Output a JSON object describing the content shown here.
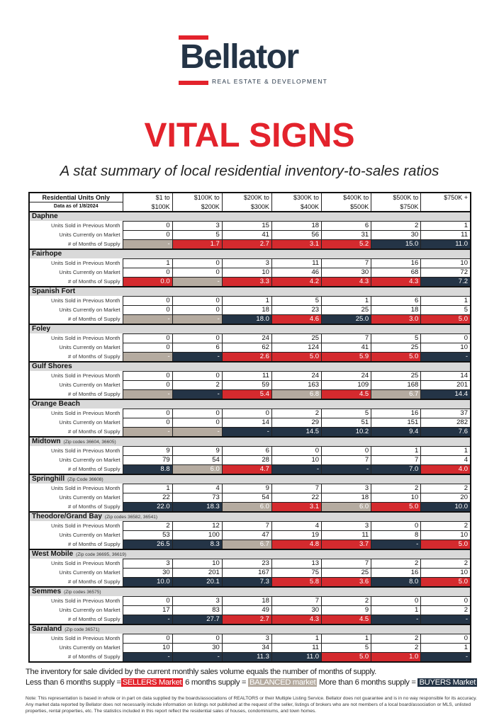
{
  "brand": {
    "name": "Bellator",
    "tagline": "REAL ESTATE & DEVELOPMENT"
  },
  "title": "VITAL SIGNS",
  "subtitle": "A stat summary of local residential inventory-to-sales ratios",
  "colors": {
    "sellers": "#d42a2e",
    "balanced": "#b5aba0",
    "buyers": "#243446",
    "brand_red": "#e3232c"
  },
  "table": {
    "header_label": "Residential Units Only",
    "date_label": "Data as of 1/8/2024",
    "columns": [
      [
        "$1 to",
        "$100K"
      ],
      [
        "$100K to",
        "$200K"
      ],
      [
        "$200K to",
        "$300K"
      ],
      [
        "$300K to",
        "$400K"
      ],
      [
        "$400K to",
        "$500K"
      ],
      [
        "$500K to",
        "$750K"
      ],
      [
        "$750K +",
        ""
      ]
    ],
    "row_labels": [
      "Units Sold in Previous Month",
      "Units Currently on Market",
      "# of Months of Supply"
    ],
    "market_key": {
      "s": "sellers",
      "b": "balanced",
      "y": "buyers"
    },
    "sections": [
      {
        "name": "Daphne",
        "zip": "",
        "sold": [
          "0",
          "3",
          "15",
          "18",
          "6",
          "2",
          "1"
        ],
        "market": [
          "0",
          "5",
          "41",
          "56",
          "31",
          "30",
          "11"
        ],
        "supply": [
          "-",
          "1.7",
          "2.7",
          "3.1",
          "5.2",
          "15.0",
          "11.0"
        ],
        "supply_market": [
          "b",
          "s",
          "s",
          "s",
          "s",
          "y",
          "y"
        ]
      },
      {
        "name": "Fairhope",
        "zip": "",
        "sold": [
          "1",
          "0",
          "3",
          "11",
          "7",
          "16",
          "10"
        ],
        "market": [
          "0",
          "0",
          "10",
          "46",
          "30",
          "68",
          "72"
        ],
        "supply": [
          "0.0",
          "-",
          "3.3",
          "4.2",
          "4.3",
          "4.3",
          "7.2"
        ],
        "supply_market": [
          "s",
          "b",
          "s",
          "s",
          "s",
          "s",
          "y"
        ]
      },
      {
        "name": "Spanish Fort",
        "zip": "",
        "sold": [
          "0",
          "0",
          "1",
          "5",
          "1",
          "6",
          "1"
        ],
        "market": [
          "0",
          "0",
          "18",
          "23",
          "25",
          "18",
          "5"
        ],
        "supply": [
          "-",
          "-",
          "18.0",
          "4.6",
          "25.0",
          "3.0",
          "5.0"
        ],
        "supply_market": [
          "b",
          "b",
          "y",
          "s",
          "y",
          "s",
          "s"
        ]
      },
      {
        "name": "Foley",
        "zip": "",
        "sold": [
          "0",
          "0",
          "24",
          "25",
          "7",
          "5",
          "0"
        ],
        "market": [
          "0",
          "6",
          "62",
          "124",
          "41",
          "25",
          "10"
        ],
        "supply": [
          "-",
          "-",
          "2.6",
          "5.0",
          "5.9",
          "5.0",
          "-"
        ],
        "supply_market": [
          "b",
          "y",
          "s",
          "s",
          "s",
          "s",
          "y"
        ]
      },
      {
        "name": "Gulf Shores",
        "zip": "",
        "sold": [
          "0",
          "0",
          "11",
          "24",
          "24",
          "25",
          "14"
        ],
        "market": [
          "0",
          "2",
          "59",
          "163",
          "109",
          "168",
          "201"
        ],
        "supply": [
          "-",
          "-",
          "5.4",
          "6.8",
          "4.5",
          "6.7",
          "14.4"
        ],
        "supply_market": [
          "b",
          "y",
          "s",
          "b",
          "s",
          "b",
          "y"
        ]
      },
      {
        "name": "Orange Beach",
        "zip": "",
        "sold": [
          "0",
          "0",
          "0",
          "2",
          "5",
          "16",
          "37"
        ],
        "market": [
          "0",
          "0",
          "14",
          "29",
          "51",
          "151",
          "282"
        ],
        "supply": [
          "-",
          "-",
          "-",
          "14.5",
          "10.2",
          "9.4",
          "7.6"
        ],
        "supply_market": [
          "b",
          "b",
          "y",
          "y",
          "y",
          "y",
          "y"
        ]
      },
      {
        "name": "Midtown",
        "zip": "(Zip codes 36604, 36605)",
        "sold": [
          "9",
          "9",
          "6",
          "0",
          "0",
          "1",
          "1"
        ],
        "market": [
          "79",
          "54",
          "28",
          "10",
          "7",
          "7",
          "4"
        ],
        "supply": [
          "8.8",
          "6.0",
          "4.7",
          "-",
          "-",
          "7.0",
          "4.0"
        ],
        "supply_market": [
          "y",
          "b",
          "s",
          "y",
          "y",
          "y",
          "s"
        ]
      },
      {
        "name": "Springhill",
        "zip": "(Zip Code 36608)",
        "sold": [
          "1",
          "4",
          "9",
          "7",
          "3",
          "2",
          "2"
        ],
        "market": [
          "22",
          "73",
          "54",
          "22",
          "18",
          "10",
          "20"
        ],
        "supply": [
          "22.0",
          "18.3",
          "6.0",
          "3.1",
          "6.0",
          "5.0",
          "10.0"
        ],
        "supply_market": [
          "y",
          "y",
          "b",
          "s",
          "b",
          "s",
          "y"
        ]
      },
      {
        "name": "Theodore/Grand Bay",
        "zip": "(Zip codes 36582, 36541)",
        "sold": [
          "2",
          "12",
          "7",
          "4",
          "3",
          "0",
          "2"
        ],
        "market": [
          "53",
          "100",
          "47",
          "19",
          "11",
          "8",
          "10"
        ],
        "supply": [
          "26.5",
          "8.3",
          "6.7",
          "4.8",
          "3.7",
          "-",
          "5.0"
        ],
        "supply_market": [
          "y",
          "y",
          "b",
          "s",
          "s",
          "y",
          "s"
        ]
      },
      {
        "name": "West Mobile",
        "zip": "(Zip code 36695, 36619)",
        "sold": [
          "3",
          "10",
          "23",
          "13",
          "7",
          "2",
          "2"
        ],
        "market": [
          "30",
          "201",
          "167",
          "75",
          "25",
          "16",
          "10"
        ],
        "supply": [
          "10.0",
          "20.1",
          "7.3",
          "5.8",
          "3.6",
          "8.0",
          "5.0"
        ],
        "supply_market": [
          "y",
          "y",
          "y",
          "s",
          "s",
          "y",
          "s"
        ]
      },
      {
        "name": "Semmes",
        "zip": "(Zip codes 36575)",
        "sold": [
          "0",
          "3",
          "18",
          "7",
          "2",
          "0",
          "0"
        ],
        "market": [
          "17",
          "83",
          "49",
          "30",
          "9",
          "1",
          "2"
        ],
        "supply": [
          "-",
          "27.7",
          "2.7",
          "4.3",
          "4.5",
          "-",
          "-"
        ],
        "supply_market": [
          "y",
          "y",
          "s",
          "s",
          "s",
          "y",
          "y"
        ]
      },
      {
        "name": "Saraland",
        "zip": "(Zip code 36571)",
        "sold": [
          "0",
          "0",
          "3",
          "1",
          "1",
          "2",
          "0"
        ],
        "market": [
          "10",
          "30",
          "34",
          "11",
          "5",
          "2",
          "1"
        ],
        "supply": [
          "-",
          "-",
          "11.3",
          "11.0",
          "5.0",
          "1.0",
          "-"
        ],
        "supply_market": [
          "y",
          "y",
          "y",
          "y",
          "s",
          "s",
          "y"
        ]
      }
    ]
  },
  "legend": {
    "line1": "The inventory for sale divided by the current monthly sales volume equals the number of months of supply.",
    "less_text": "Less than 6 months supply =",
    "sellers_tag": "SELLERS Market",
    "equal_text": "6 months supply =",
    "balanced_tag": "BALANCED market",
    "more_text": "More than 6 months supply =",
    "buyers_tag": "BUYERS Market"
  },
  "note": "Note: This representation is based in whole or in part on data supplied by the boards/associations of REALTORS or their Multiple Listing Service. Bellator does not guarantee and is in no way responsible for its accuracy. Any market data reported by Bellator does not necessarily include information on listings not published at the request of the seller, listings of brokers who are not members of a local board/association or MLS, unlisted properties, rental properties, etc. The statistics included in this report reflect the residential sales of houses, condominiums, and town homes."
}
